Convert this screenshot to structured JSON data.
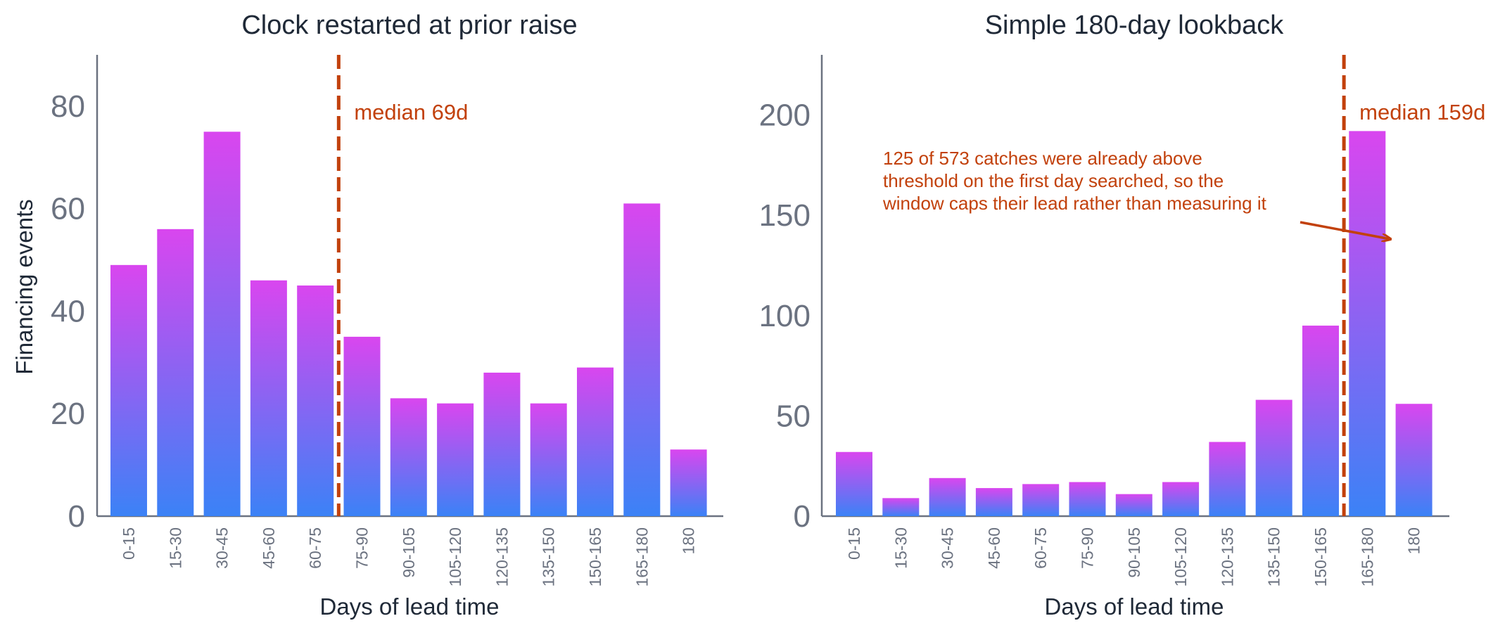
{
  "chart_data": [
    {
      "type": "bar",
      "title": "Clock restarted at prior raise",
      "xlabel": "Days of lead time",
      "ylabel": "Financing events",
      "categories": [
        "0-15",
        "15-30",
        "30-45",
        "45-60",
        "60-75",
        "75-90",
        "90-105",
        "105-120",
        "120-135",
        "135-150",
        "150-165",
        "165-180",
        "180"
      ],
      "values": [
        49,
        56,
        75,
        46,
        45,
        35,
        23,
        22,
        28,
        22,
        29,
        61,
        13
      ],
      "ylim": [
        0,
        90
      ],
      "yticks": [
        0,
        20,
        40,
        60,
        80
      ],
      "median_label": "median 69d",
      "median_position_category": 5,
      "grid": false
    },
    {
      "type": "bar",
      "title": "Simple 180-day lookback",
      "xlabel": "Days of lead time",
      "ylabel": "",
      "categories": [
        "0-15",
        "15-30",
        "30-45",
        "45-60",
        "60-75",
        "75-90",
        "90-105",
        "105-120",
        "120-135",
        "135-150",
        "150-165",
        "165-180",
        "180"
      ],
      "values": [
        32,
        9,
        19,
        14,
        16,
        17,
        11,
        17,
        37,
        58,
        95,
        192,
        56
      ],
      "ylim": [
        0,
        230
      ],
      "yticks": [
        0,
        50,
        100,
        150,
        200
      ],
      "median_label": "median 159d",
      "median_position_category": 11,
      "annotation": "125 of 573 catches were already above threshold on the first day searched, so the window caps their lead rather than measuring it",
      "annotation_lines": [
        "125 of 573 catches were already above",
        "threshold on the first day searched, so the",
        "window caps their lead rather than measuring it"
      ],
      "grid": false
    }
  ],
  "colors": {
    "bar_top": "#d946ef",
    "bar_bottom": "#3b82f6",
    "median": "#c2410c",
    "axis": "#6b7280",
    "text": "#1f2937"
  }
}
